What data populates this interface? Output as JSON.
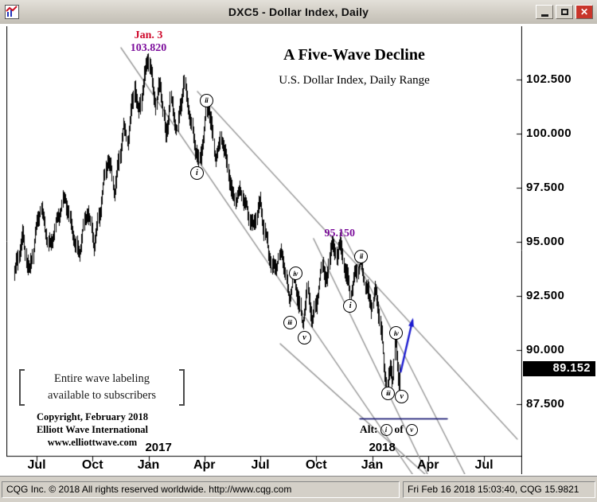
{
  "window": {
    "title": "DXC5 - Dollar Index, Daily"
  },
  "status_bar": {
    "left": "CQG Inc. © 2018 All rights reserved worldwide.  http://www.cqg.com",
    "right": "Fri Feb 16 2018 15:03:40, CQG 15.9821"
  },
  "chart_data": {
    "type": "bar",
    "symbol": "DXC5",
    "title": "A Five-Wave Decline",
    "subtitle": "U.S. Dollar Index, Daily Range",
    "note_lines": [
      "Entire wave labeling",
      "available to subscribers"
    ],
    "copyright_lines": [
      "Copyright, February 2018",
      "Elliott Wave International",
      "www.elliottwave.com"
    ],
    "alt_label": {
      "prefix": "Alt:",
      "wave1": "i",
      "mid": "of",
      "wave2": "v"
    },
    "x_axis": {
      "months": [
        {
          "label": "Jul",
          "date": 2016.5
        },
        {
          "label": "Oct",
          "date": 2016.75
        },
        {
          "label": "Jan",
          "date": 2017.0
        },
        {
          "label": "Apr",
          "date": 2017.25
        },
        {
          "label": "Jul",
          "date": 2017.5
        },
        {
          "label": "Oct",
          "date": 2017.75
        },
        {
          "label": "Jan",
          "date": 2018.0
        },
        {
          "label": "Apr",
          "date": 2018.25
        },
        {
          "label": "Jul",
          "date": 2018.5
        }
      ],
      "years": [
        {
          "label": "2017",
          "date": 2017.045
        },
        {
          "label": "2018",
          "date": 2018.045
        }
      ]
    },
    "y_axis": {
      "ticks": [
        {
          "price": 102.5,
          "label": "102.500"
        },
        {
          "price": 100.0,
          "label": "100.000"
        },
        {
          "price": 97.5,
          "label": "97.500"
        },
        {
          "price": 95.0,
          "label": "95.000"
        },
        {
          "price": 92.5,
          "label": "92.500"
        },
        {
          "price": 90.0,
          "label": "90.000"
        },
        {
          "price": 87.5,
          "label": "87.500"
        }
      ]
    },
    "last_price": {
      "value": 89.152,
      "label": "89.152"
    },
    "price_annotations": [
      {
        "text": "Jan. 3",
        "date": 2017.0,
        "price": 104.52,
        "color": "#cf0a2c"
      },
      {
        "text": "103.820",
        "date": 2017.0,
        "price": 103.95,
        "color": "#7d0f9c"
      },
      {
        "text": "95.150",
        "date": 2017.855,
        "price": 95.36,
        "color": "#7d0f9c"
      }
    ],
    "wave_labels": [
      {
        "text": "i",
        "date": 2017.214,
        "price": 98.2
      },
      {
        "text": "ii",
        "date": 2017.257,
        "price": 101.55
      },
      {
        "text": "iii",
        "date": 2017.63,
        "price": 91.3
      },
      {
        "text": "iv",
        "date": 2017.655,
        "price": 93.55
      },
      {
        "text": "v",
        "date": 2017.695,
        "price": 90.6
      },
      {
        "text": "i",
        "date": 2017.9,
        "price": 92.05
      },
      {
        "text": "ii",
        "date": 2017.95,
        "price": 94.35
      },
      {
        "text": "iii",
        "date": 2018.07,
        "price": 88.0
      },
      {
        "text": "iv",
        "date": 2018.105,
        "price": 90.8
      },
      {
        "text": "v",
        "date": 2018.13,
        "price": 87.85
      }
    ],
    "trendlines": [
      [
        2016.877,
        103.97,
        2018.18,
        84.27
      ],
      [
        2017.219,
        101.95,
        2018.649,
        85.88
      ],
      [
        2017.589,
        90.29,
        2018.236,
        84.27
      ],
      [
        2017.738,
        95.15,
        2018.247,
        84.27
      ],
      [
        2017.859,
        95.59,
        2018.414,
        84.27
      ]
    ],
    "alt_underline": {
      "date1": 2017.945,
      "date2": 2018.336,
      "price": 86.82,
      "color": "#000066"
    },
    "arrow": {
      "date1": 2018.128,
      "price1": 89.0,
      "date2": 2018.18,
      "price2": 91.35,
      "color": "#1b1bd0"
    },
    "swings": [
      [
        2016.4,
        93.2
      ],
      [
        2016.44,
        95.4
      ],
      [
        2016.47,
        93.6
      ],
      [
        2016.52,
        96.6
      ],
      [
        2016.56,
        94.9
      ],
      [
        2016.63,
        97.0
      ],
      [
        2016.69,
        94.4
      ],
      [
        2016.73,
        96.3
      ],
      [
        2016.76,
        95.0
      ],
      [
        2016.82,
        98.8
      ],
      [
        2016.85,
        97.3
      ],
      [
        2016.89,
        100.5
      ],
      [
        2016.91,
        99.6
      ],
      [
        2016.94,
        102.1
      ],
      [
        2016.955,
        100.8
      ],
      [
        2017.0,
        103.82
      ],
      [
        2017.035,
        101.2
      ],
      [
        2017.055,
        102.3
      ],
      [
        2017.08,
        99.8
      ],
      [
        2017.1,
        101.8
      ],
      [
        2017.13,
        100.1
      ],
      [
        2017.16,
        102.2
      ],
      [
        2017.23,
        98.6
      ],
      [
        2017.27,
        101.3
      ],
      [
        2017.3,
        99.0
      ],
      [
        2017.33,
        100.0
      ],
      [
        2017.38,
        96.8
      ],
      [
        2017.42,
        97.5
      ],
      [
        2017.47,
        95.5
      ],
      [
        2017.5,
        96.7
      ],
      [
        2017.56,
        93.7
      ],
      [
        2017.6,
        94.3
      ],
      [
        2017.63,
        92.55
      ],
      [
        2017.655,
        93.45
      ],
      [
        2017.69,
        91.05
      ],
      [
        2017.715,
        92.7
      ],
      [
        2017.735,
        91.35
      ],
      [
        2017.78,
        94.0
      ],
      [
        2017.8,
        92.9
      ],
      [
        2017.82,
        95.0
      ],
      [
        2017.838,
        94.25
      ],
      [
        2017.855,
        95.15
      ],
      [
        2017.905,
        92.5
      ],
      [
        2017.95,
        94.25
      ],
      [
        2017.97,
        93.3
      ],
      [
        2018.0,
        92.0
      ],
      [
        2018.02,
        92.6
      ],
      [
        2018.07,
        88.25
      ],
      [
        2018.085,
        89.55
      ],
      [
        2018.095,
        88.6
      ],
      [
        2018.105,
        90.55
      ],
      [
        2018.125,
        88.25
      ],
      [
        2018.127,
        89.15
      ]
    ]
  }
}
